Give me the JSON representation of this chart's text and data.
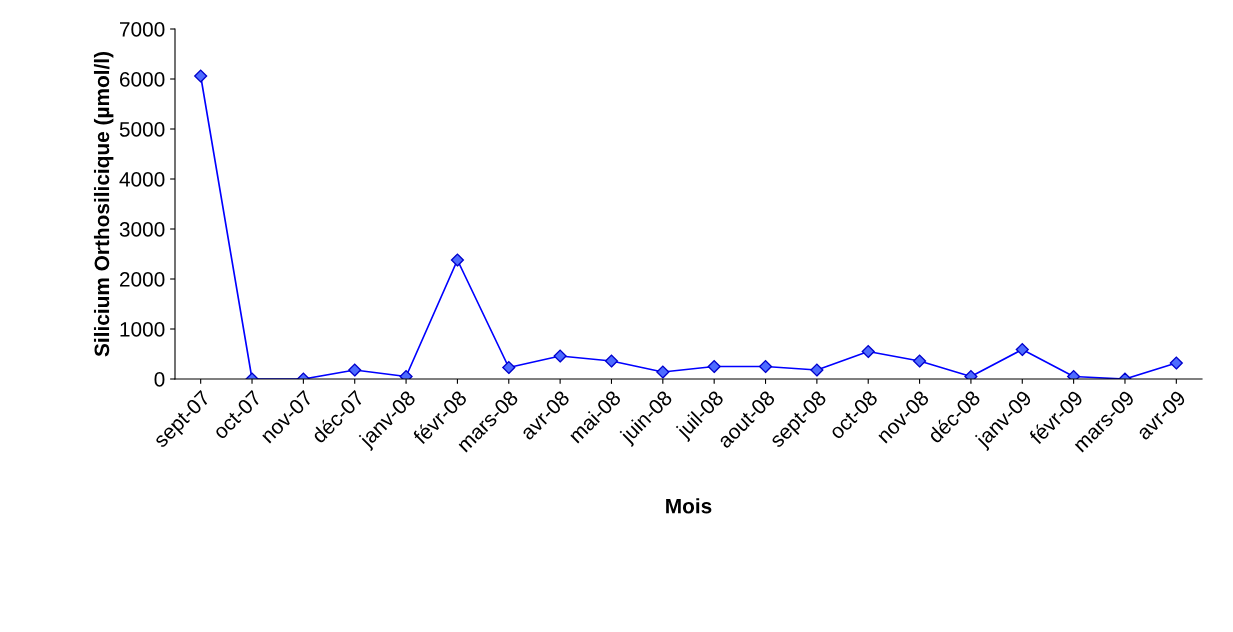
{
  "chart_data": {
    "type": "line",
    "xlabel": "Mois",
    "ylabel": "Silicium Orthosilicique (µmol/l)",
    "categories": [
      "sept-07",
      "oct-07",
      "nov-07",
      "déc-07",
      "janv-08",
      "févr-08",
      "mars-08",
      "avr-08",
      "mai-08",
      "juin-08",
      "juil-08",
      "aout-08",
      "sept-08",
      "oct-08",
      "nov-08",
      "déc-08",
      "janv-09",
      "févr-09",
      "mars-09",
      "avr-09"
    ],
    "series": [
      {
        "color": "#0000ff",
        "values": [
          6060,
          0,
          0,
          180,
          50,
          2380,
          230,
          460,
          360,
          140,
          250,
          250,
          180,
          550,
          360,
          50,
          590,
          50,
          0,
          320
        ]
      }
    ],
    "ylim": [
      0,
      7000
    ],
    "yticks": [
      0,
      1000,
      2000,
      3000,
      4000,
      5000,
      6000,
      7000
    ],
    "grid": false,
    "legend": false,
    "marker": "diamond",
    "line_style": "solid"
  }
}
